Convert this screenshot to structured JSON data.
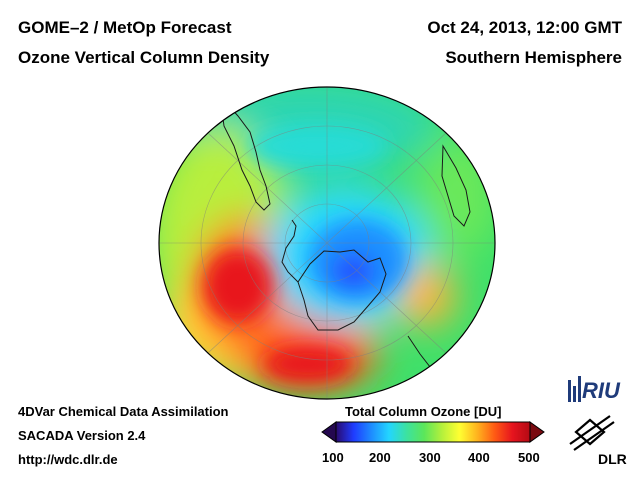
{
  "header": {
    "title_line1": "GOME–2 / MetOp Forecast",
    "title_line2": "Ozone Vertical Column Density",
    "date": "Oct 24, 2013, 12:00 GMT",
    "region": "Southern Hemisphere"
  },
  "footer": {
    "line1": "4DVar Chemical Data Assimilation",
    "line2": "SACADA Version 2.4",
    "line3": "http://wdc.dlr.de"
  },
  "colorbar": {
    "title": "Total Column Ozone [DU]",
    "ticks": [
      "100",
      "200",
      "300",
      "400",
      "500"
    ],
    "min": 100,
    "max": 500,
    "colors": [
      "#2a0a6e",
      "#1f3cff",
      "#1e8cff",
      "#23d5ff",
      "#3ce2a0",
      "#5be65a",
      "#b4f03c",
      "#ffff32",
      "#ffb41e",
      "#ff5a14",
      "#e6141e",
      "#b40a14"
    ]
  },
  "logos": {
    "riu": "RIU",
    "dlr": "DLR"
  },
  "map": {
    "projection": "orthographic, south-polar",
    "ozone_hole_min_du": 190,
    "peak_du": 440
  }
}
